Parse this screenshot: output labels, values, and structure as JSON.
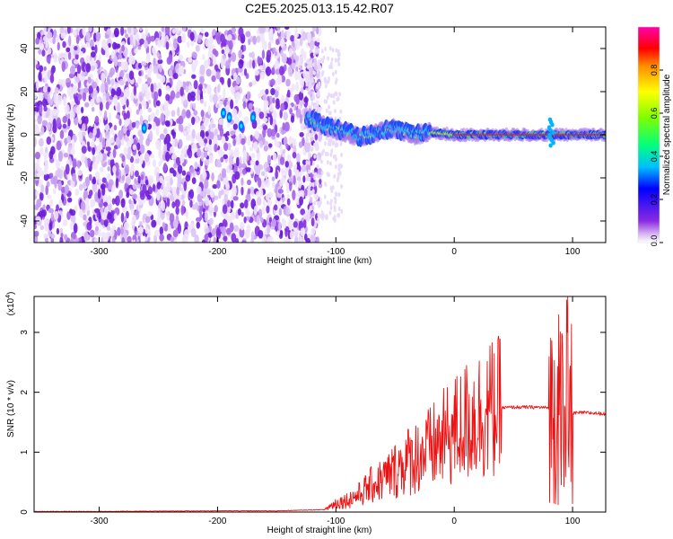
{
  "title": "C2E5.2025.013.15.42.R07",
  "chart_data": [
    {
      "type": "heatmap",
      "xlabel": "Height of straight line (km)",
      "ylabel": "Frequency (Hz)",
      "xlim": [
        -355,
        128
      ],
      "ylim": [
        -50,
        50
      ],
      "xticks": [
        -300,
        -200,
        -100,
        0,
        100
      ],
      "yticks": [
        -40,
        -20,
        0,
        20,
        40
      ],
      "colorbar": {
        "label": "Normalized spectral amplitude",
        "ticks": [
          "0.0",
          "0.2",
          "0.4",
          "0.6",
          "0.8"
        ],
        "range": [
          0,
          1
        ],
        "colors": [
          "#ffffff",
          "#d7b4f0",
          "#8a2be2",
          "#0000ff",
          "#00bfff",
          "#00ff7f",
          "#7fff00",
          "#ffff00",
          "#ff8c00",
          "#ff0000",
          "#ff00ff"
        ]
      },
      "noise_region_x": [
        -355,
        -125
      ],
      "signal_trace": [
        {
          "x": -125,
          "f": 8
        },
        {
          "x": -110,
          "f": 4
        },
        {
          "x": -95,
          "f": 2
        },
        {
          "x": -80,
          "f": -1
        },
        {
          "x": -65,
          "f": 1
        },
        {
          "x": -50,
          "f": 3
        },
        {
          "x": -35,
          "f": 0
        },
        {
          "x": -20,
          "f": 1
        },
        {
          "x": 0,
          "f": 0
        },
        {
          "x": 50,
          "f": 0
        },
        {
          "x": 128,
          "f": 0
        }
      ]
    },
    {
      "type": "line",
      "xlabel": "Height of straight line (km)",
      "ylabel": "SNR (10 * v/v)",
      "multiplier": "(x10",
      "multiplier_exp": "4",
      "xlim": [
        -355,
        128
      ],
      "ylim": [
        0,
        3.6
      ],
      "xticks": [
        -300,
        -200,
        -100,
        0,
        100
      ],
      "yticks": [
        0,
        1,
        2,
        3
      ],
      "color": "#ee1111",
      "series": [
        {
          "values": [
            [
              -355,
              0.01
            ],
            [
              -300,
              0.01
            ],
            [
              -200,
              0.02
            ],
            [
              -150,
              0.02
            ],
            [
              -110,
              0.04
            ],
            [
              -100,
              0.15
            ],
            [
              -90,
              0.2
            ],
            [
              -80,
              0.3
            ],
            [
              -70,
              0.45
            ],
            [
              -60,
              0.55
            ],
            [
              -50,
              0.7
            ],
            [
              -40,
              0.85
            ],
            [
              -30,
              0.95
            ],
            [
              -20,
              1.05
            ],
            [
              -10,
              1.2
            ],
            [
              0,
              1.35
            ],
            [
              10,
              1.5
            ],
            [
              20,
              1.62
            ],
            [
              30,
              1.7
            ],
            [
              40,
              1.74
            ],
            [
              50,
              1.75
            ],
            [
              60,
              1.75
            ],
            [
              70,
              1.75
            ],
            [
              80,
              1.74
            ],
            [
              85,
              1.7
            ],
            [
              90,
              1.6
            ],
            [
              95,
              1.55
            ],
            [
              100,
              1.65
            ],
            [
              110,
              1.66
            ],
            [
              128,
              1.64
            ]
          ]
        }
      ]
    }
  ]
}
